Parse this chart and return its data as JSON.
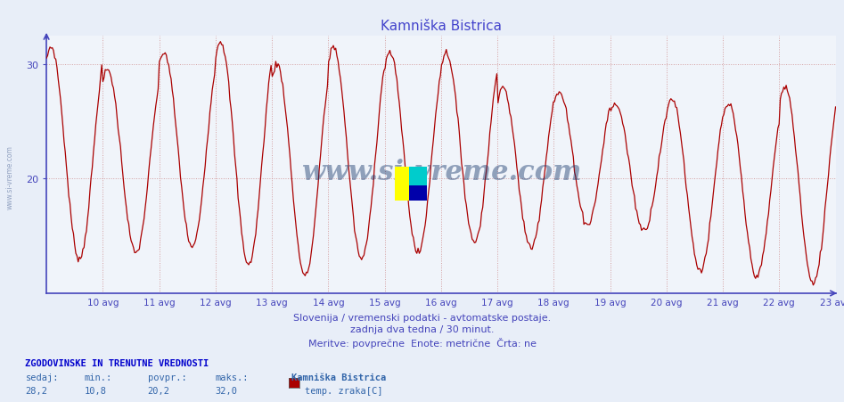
{
  "title": "Kamniška Bistrica",
  "title_color": "#4444cc",
  "bg_color": "#e8eef8",
  "plot_bg_color": "#f0f4fa",
  "line_color": "#aa0000",
  "axis_color": "#4444bb",
  "grid_color": "#cc8888",
  "y_min": 10,
  "y_max": 32.5,
  "y_ticks": [
    20,
    30
  ],
  "x_labels": [
    "10 avg",
    "11 avg",
    "12 avg",
    "13 avg",
    "14 avg",
    "15 avg",
    "16 avg",
    "17 avg",
    "18 avg",
    "19 avg",
    "20 avg",
    "21 avg",
    "22 avg",
    "23 avg"
  ],
  "subtitle1": "Slovenija / vremenski podatki - avtomatske postaje.",
  "subtitle2": "zadnja dva tedna / 30 minut.",
  "subtitle3": "Meritve: povprečne  Enote: metrične  Črta: ne",
  "legend_title": "ZGODOVINSKE IN TRENUTNE VREDNOSTI",
  "legend_sedaj": "sedaj:",
  "legend_min": "min.:",
  "legend_povpr": "povpr.:",
  "legend_maks": "maks.:",
  "legend_val_sedaj": "28,2",
  "legend_val_min": "10,8",
  "legend_val_povpr": "20,2",
  "legend_val_maks": "32,0",
  "legend_station": "Kamniška Bistrica",
  "legend_series": "temp. zraka[C]",
  "watermark": "www.si-vreme.com",
  "watermark_color": "#1a3a6e"
}
